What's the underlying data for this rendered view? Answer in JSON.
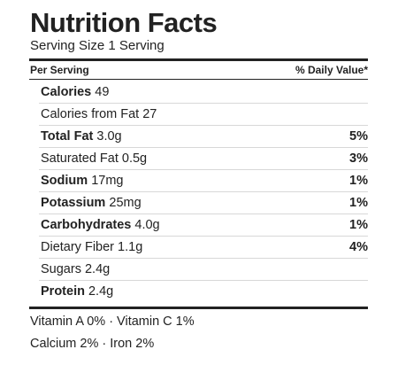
{
  "title": "Nutrition Facts",
  "serving_size": "Serving Size 1 Serving",
  "header": {
    "per_serving": "Per Serving",
    "daily_value": "% Daily Value*"
  },
  "rows": [
    {
      "label": "Calories",
      "amount": "49",
      "bold": true,
      "dv": ""
    },
    {
      "label": "Calories from Fat",
      "amount": "27",
      "bold": false,
      "dv": ""
    },
    {
      "label": "Total Fat",
      "amount": "3.0g",
      "bold": true,
      "dv": "5%"
    },
    {
      "label": "Saturated Fat",
      "amount": "0.5g",
      "bold": false,
      "dv": "3%"
    },
    {
      "label": "Sodium",
      "amount": "17mg",
      "bold": true,
      "dv": "1%"
    },
    {
      "label": "Potassium",
      "amount": "25mg",
      "bold": true,
      "dv": "1%"
    },
    {
      "label": "Carbohydrates",
      "amount": "4.0g",
      "bold": true,
      "dv": "1%"
    },
    {
      "label": "Dietary Fiber",
      "amount": "1.1g",
      "bold": false,
      "dv": "4%"
    },
    {
      "label": "Sugars",
      "amount": "2.4g",
      "bold": false,
      "dv": ""
    },
    {
      "label": "Protein",
      "amount": "2.4g",
      "bold": true,
      "dv": ""
    }
  ],
  "vitamins": {
    "line1": "Vitamin A 0% · Vitamin C 1%",
    "line2": "Calcium 2% · Iron 2%"
  },
  "colors": {
    "text": "#222222",
    "rule": "#222222",
    "thin_rule": "#d8d8d8"
  }
}
